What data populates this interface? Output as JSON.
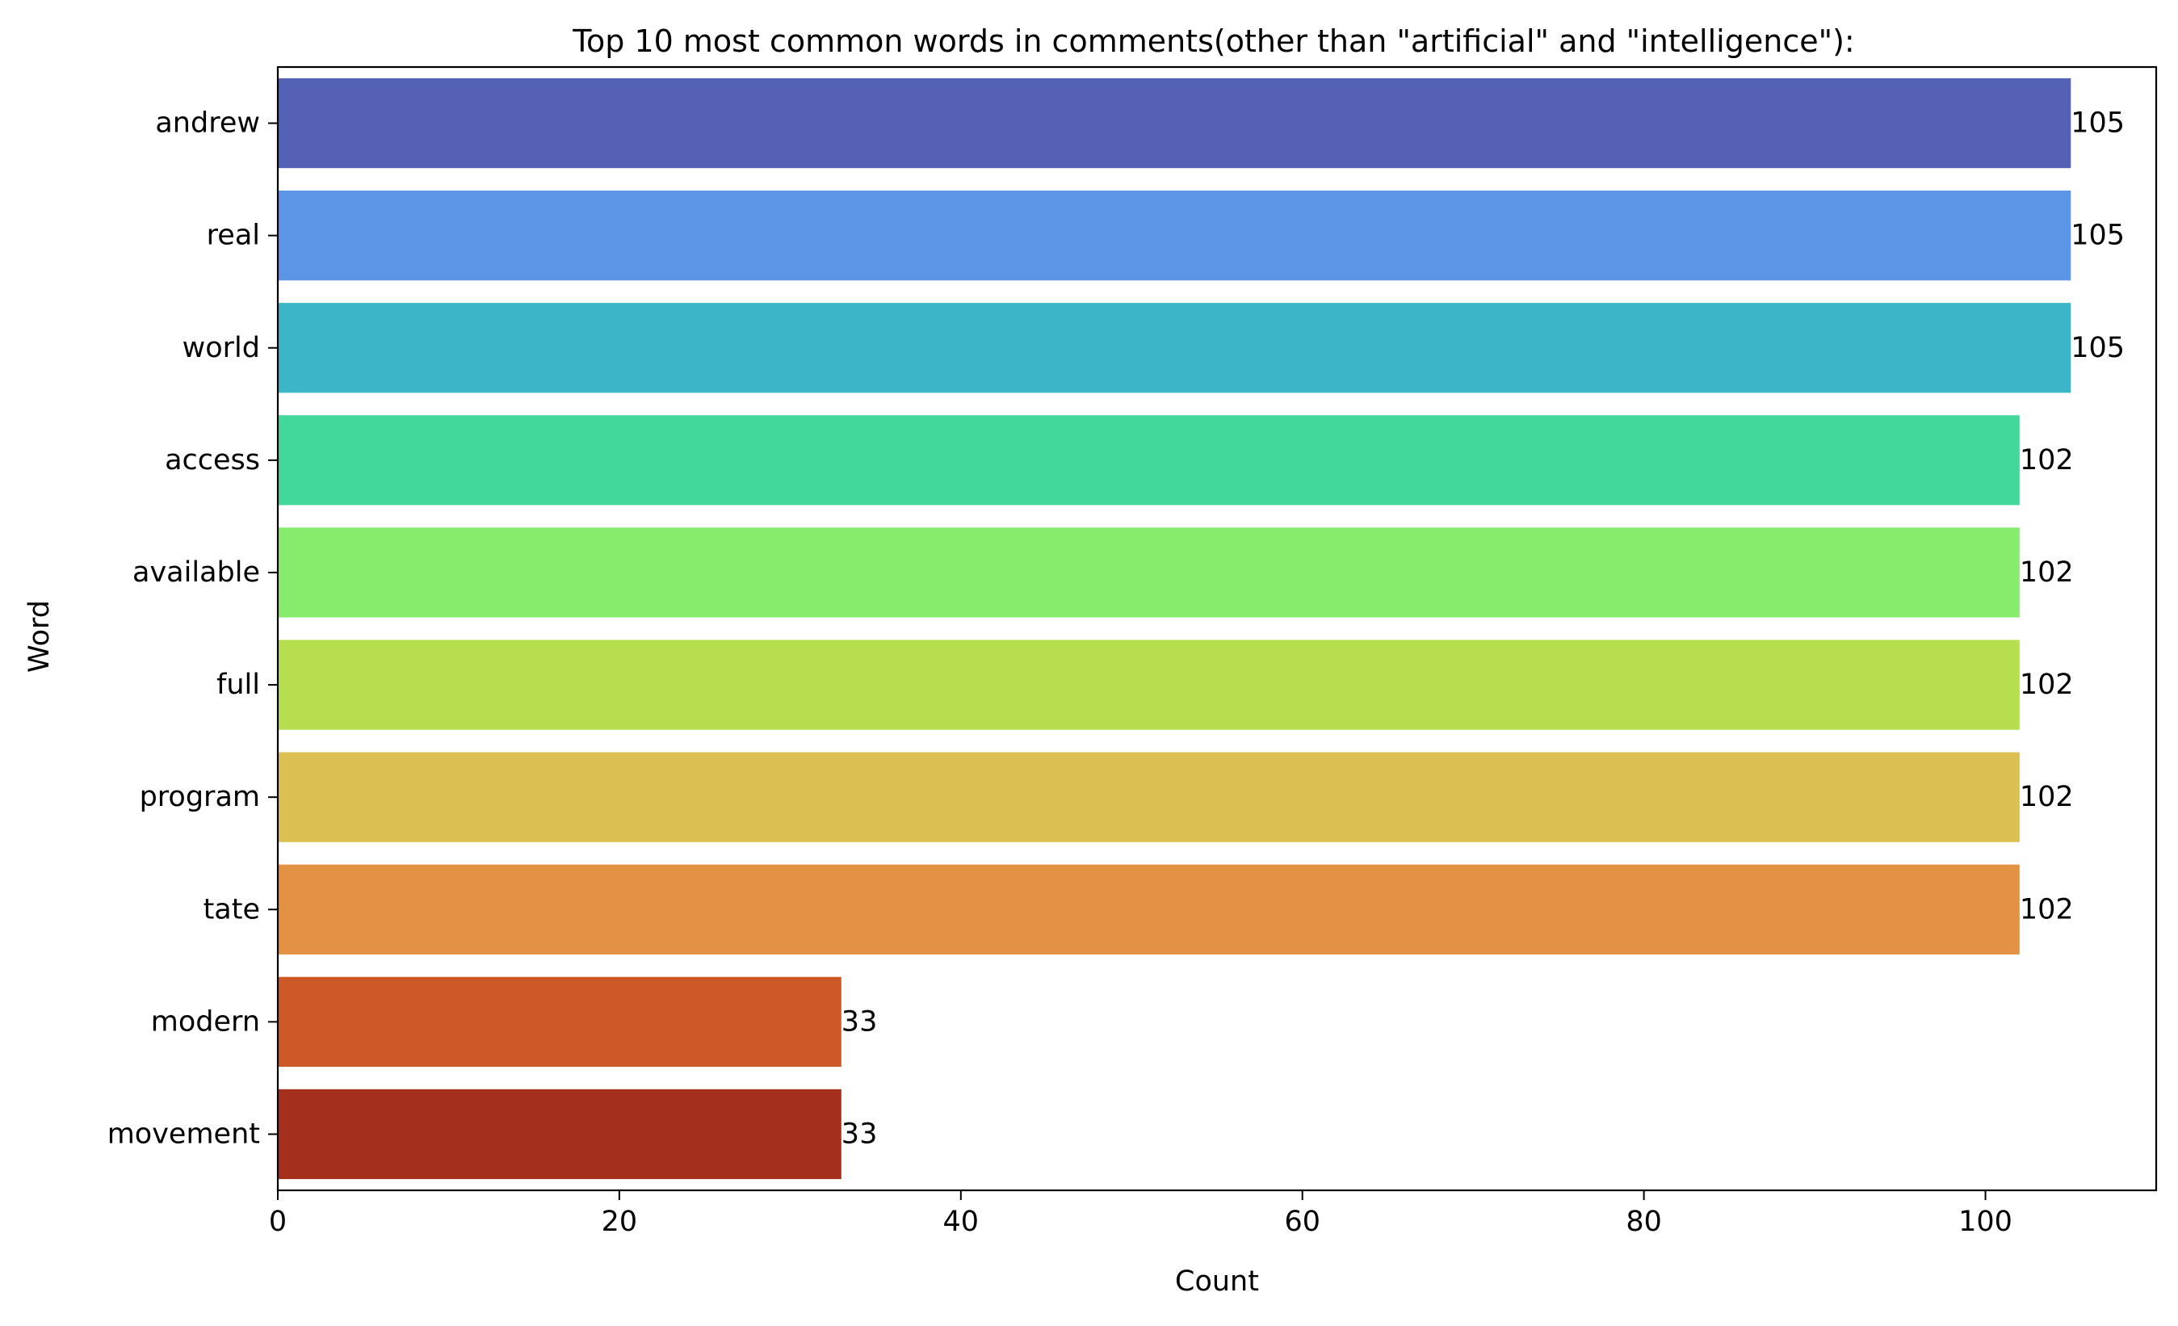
{
  "chart_data": {
    "type": "bar",
    "orientation": "horizontal",
    "title": "Top 10 most common words in comments(other than \"artificial\" and \"intelligence\"):",
    "xlabel": "Count",
    "ylabel": "Word",
    "xlim": [
      0,
      110
    ],
    "xticks": [
      0,
      20,
      40,
      60,
      80,
      100
    ],
    "grid": false,
    "categories": [
      "andrew",
      "real",
      "world",
      "access",
      "available",
      "full",
      "program",
      "tate",
      "modern",
      "movement"
    ],
    "values": [
      105,
      105,
      105,
      102,
      102,
      102,
      102,
      102,
      33,
      33
    ],
    "data_labels": [
      "105",
      "105",
      "105",
      "102",
      "102",
      "102",
      "102",
      "102",
      "33",
      "33"
    ],
    "colors": [
      "#5461b5",
      "#5c95e6",
      "#3bb5c8",
      "#42d79b",
      "#87ec6b",
      "#b6de4e",
      "#dcbf53",
      "#e29242",
      "#cd5828",
      "#a52f1d"
    ]
  }
}
